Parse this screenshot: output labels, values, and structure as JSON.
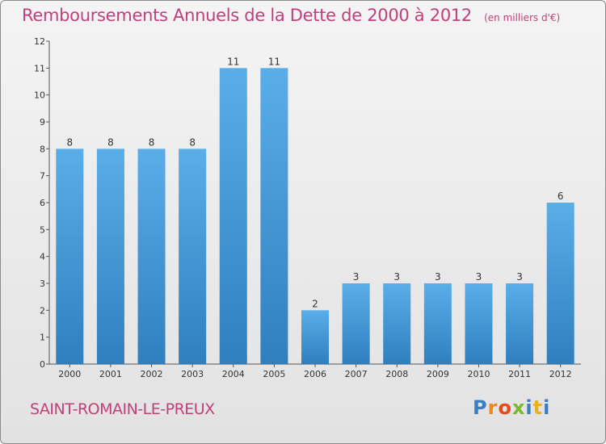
{
  "header": {
    "title": "Remboursements Annuels de la Dette de 2000 à 2012",
    "unit": "(en milliers d'€)"
  },
  "footer": {
    "commune": "SAINT-ROMAIN-LE-PREUX",
    "logo_letters": [
      "P",
      "r",
      "o",
      "x",
      "i",
      "t",
      "i"
    ],
    "logo_colors": [
      "#3a7fc4",
      "#e88b1a",
      "#e84a1a",
      "#7cb82f",
      "#3a7fc4",
      "#e8b21a",
      "#3a7fc4"
    ]
  },
  "colors": {
    "bar_top": "#5aaee8",
    "bar_bottom": "#2f7fbf",
    "axis": "#555555",
    "grid": "#bbbbbb"
  },
  "chart_data": {
    "type": "bar",
    "title": "Remboursements Annuels de la Dette de 2000 à 2012",
    "ylabel": "",
    "xlabel": "",
    "categories": [
      "2000",
      "2001",
      "2002",
      "2003",
      "2004",
      "2005",
      "2006",
      "2007",
      "2008",
      "2009",
      "2010",
      "2011",
      "2012"
    ],
    "values": [
      8,
      8,
      8,
      8,
      11,
      11,
      2,
      3,
      3,
      3,
      3,
      3,
      6
    ],
    "data_labels": [
      "8",
      "8",
      "8",
      "8",
      "11",
      "11",
      "2",
      "3",
      "3",
      "3",
      "3",
      "3",
      "6"
    ],
    "yticks": [
      "0",
      "1",
      "2",
      "3",
      "4",
      "5",
      "6",
      "7",
      "8",
      "9",
      "10",
      "11",
      "12"
    ],
    "ylim": [
      0,
      12
    ],
    "grid": false,
    "legend": "none"
  }
}
